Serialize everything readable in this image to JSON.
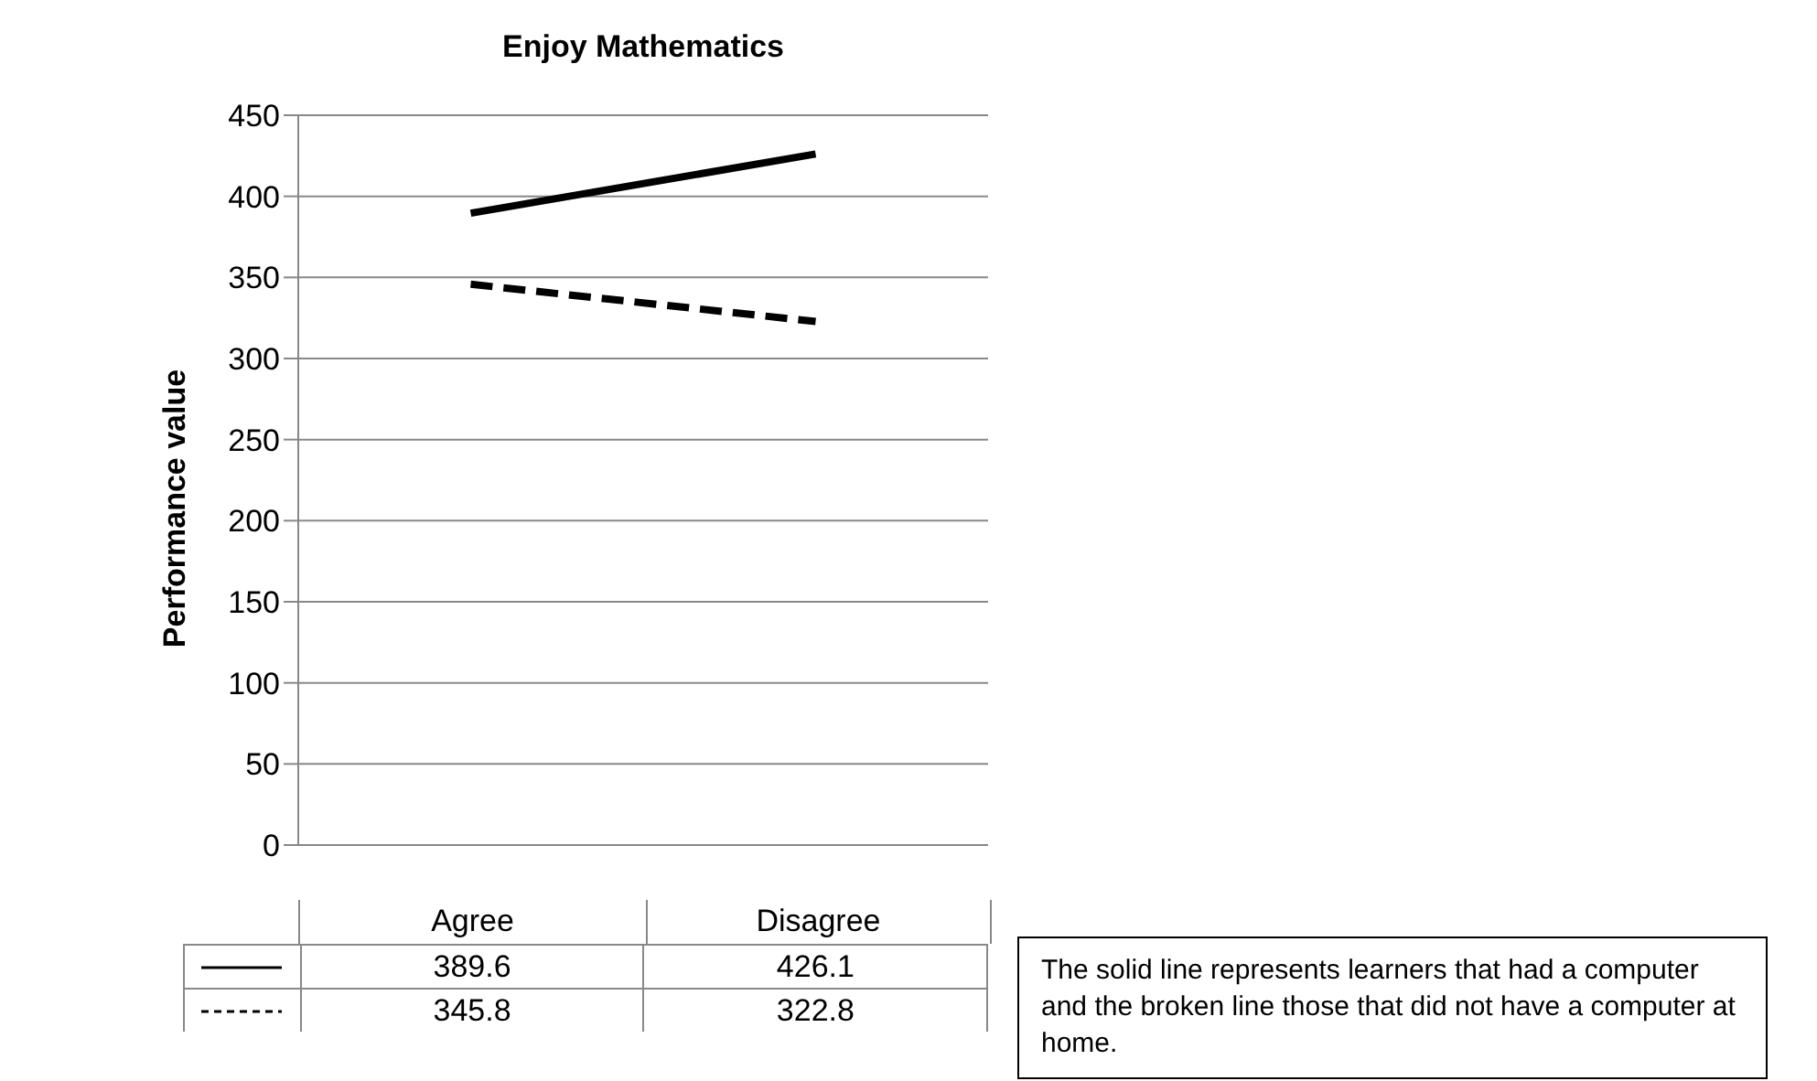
{
  "chart_data": {
    "type": "line",
    "title": "Enjoy Mathematics",
    "ylabel": "Performance value",
    "categories": [
      "Agree",
      "Disagree"
    ],
    "series": [
      {
        "color": "#000000",
        "line_style": "solid",
        "values": [
          389.6,
          426.1
        ]
      },
      {
        "color": "#000000",
        "line_style": "dashed",
        "values": [
          345.8,
          322.8
        ]
      }
    ],
    "ylim": [
      0,
      450
    ],
    "yticks": [
      0,
      50,
      100,
      150,
      200,
      250,
      300,
      350,
      400,
      450
    ],
    "grid": "y",
    "marker": "none",
    "data_labels": true,
    "annotations": [
      "The solid line represents learners that had a computer and the broken line those that did not have a computer at home."
    ]
  }
}
